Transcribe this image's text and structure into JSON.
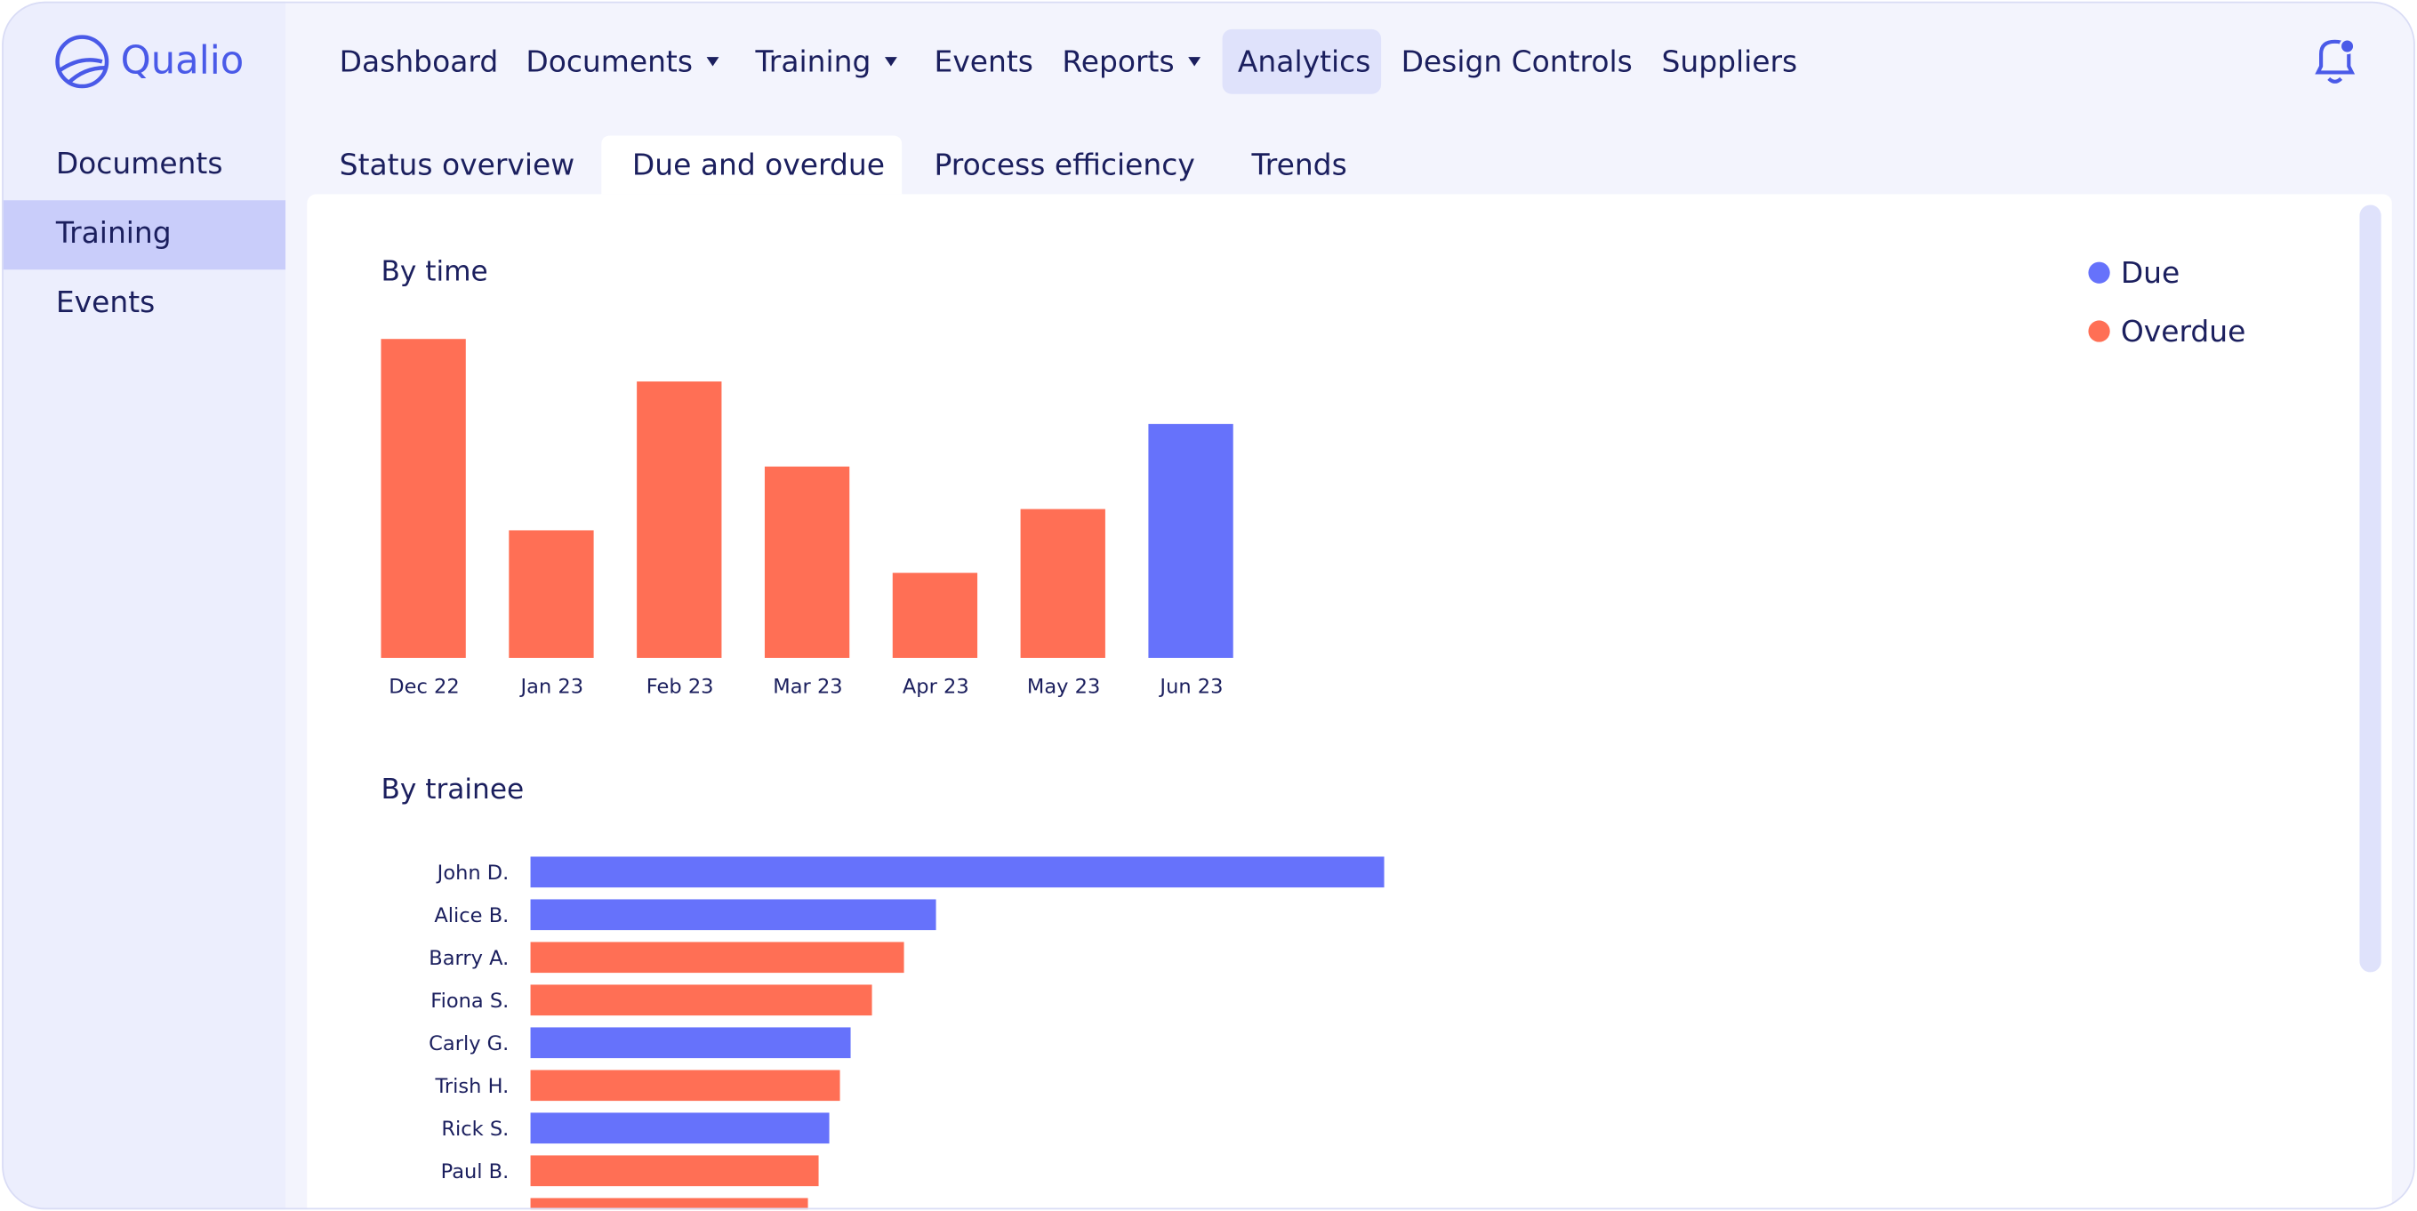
{
  "logo": "Qualio",
  "nav": {
    "items": [
      {
        "label": "Dashboard",
        "dropdown": false
      },
      {
        "label": "Documents",
        "dropdown": true
      },
      {
        "label": "Training",
        "dropdown": true
      },
      {
        "label": "Events",
        "dropdown": false
      },
      {
        "label": "Reports",
        "dropdown": true
      },
      {
        "label": "Analytics",
        "dropdown": false,
        "active": true
      },
      {
        "label": "Design Controls",
        "dropdown": false
      },
      {
        "label": "Suppliers",
        "dropdown": false
      }
    ]
  },
  "sidebar": {
    "items": [
      {
        "label": "Documents"
      },
      {
        "label": "Training",
        "active": true
      },
      {
        "label": "Events"
      }
    ]
  },
  "tabs": {
    "items": [
      {
        "label": "Status overview"
      },
      {
        "label": "Due and overdue",
        "active": true
      },
      {
        "label": "Process efficiency"
      },
      {
        "label": "Trends"
      }
    ]
  },
  "chart_data": [
    {
      "type": "bar",
      "title": "By time",
      "categories": [
        "Dec 22",
        "Jan 23",
        "Feb 23",
        "Mar 23",
        "Apr 23",
        "May 23",
        "Jun 23"
      ],
      "series": [
        {
          "name": "Due",
          "color": "#6672fb",
          "values": [
            null,
            null,
            null,
            null,
            null,
            null,
            11
          ]
        },
        {
          "name": "Overdue",
          "color": "#ff6f55",
          "values": [
            15,
            6,
            13,
            9,
            4,
            7,
            null
          ]
        }
      ],
      "legend": "top-right"
    },
    {
      "type": "hbar",
      "title": "By trainee",
      "categories": [
        "John D.",
        "Alice B.",
        "Barry A.",
        "Fiona S.",
        "Carly G.",
        "Trish H.",
        "Rick S.",
        "Paul B.",
        null
      ],
      "series": [
        {
          "color": "#6672fb",
          "values": [
            40,
            19,
            null,
            null,
            15,
            null,
            14,
            null,
            null
          ]
        },
        {
          "color": "#ff6f55",
          "values": [
            null,
            null,
            17.5,
            16,
            null,
            14.5,
            null,
            13.5,
            13
          ]
        }
      ]
    }
  ]
}
